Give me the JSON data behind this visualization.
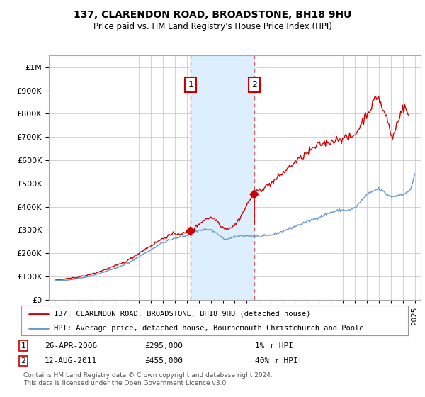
{
  "title": "137, CLARENDON ROAD, BROADSTONE, BH18 9HU",
  "subtitle": "Price paid vs. HM Land Registry's House Price Index (HPI)",
  "ylabel_ticks": [
    0,
    100000,
    200000,
    300000,
    400000,
    500000,
    600000,
    700000,
    800000,
    900000,
    1000000
  ],
  "ylabel_labels": [
    "£0",
    "£100K",
    "£200K",
    "£300K",
    "£400K",
    "£500K",
    "£600K",
    "£700K",
    "£800K",
    "£900K",
    "£1M"
  ],
  "ylim": [
    0,
    1050000
  ],
  "xlim_start": 1994.5,
  "xlim_end": 2025.5,
  "sale1_x": 2006.32,
  "sale1_y": 295000,
  "sale2_x": 2011.62,
  "sale2_y": 455000,
  "sale1_label": "1",
  "sale2_label": "2",
  "sale1_date": "26-APR-2006",
  "sale1_price": "£295,000",
  "sale1_hpi": "1% ↑ HPI",
  "sale2_date": "12-AUG-2011",
  "sale2_price": "£455,000",
  "sale2_hpi": "40% ↑ HPI",
  "legend1": "137, CLARENDON ROAD, BROADSTONE, BH18 9HU (detached house)",
  "legend2": "HPI: Average price, detached house, Bournemouth Christchurch and Poole",
  "footer": "Contains HM Land Registry data © Crown copyright and database right 2024.\nThis data is licensed under the Open Government Licence v3.0.",
  "red_color": "#cc0000",
  "blue_color": "#6699cc",
  "shade_color": "#ddeeff",
  "background_color": "#ffffff",
  "grid_color": "#cccccc"
}
